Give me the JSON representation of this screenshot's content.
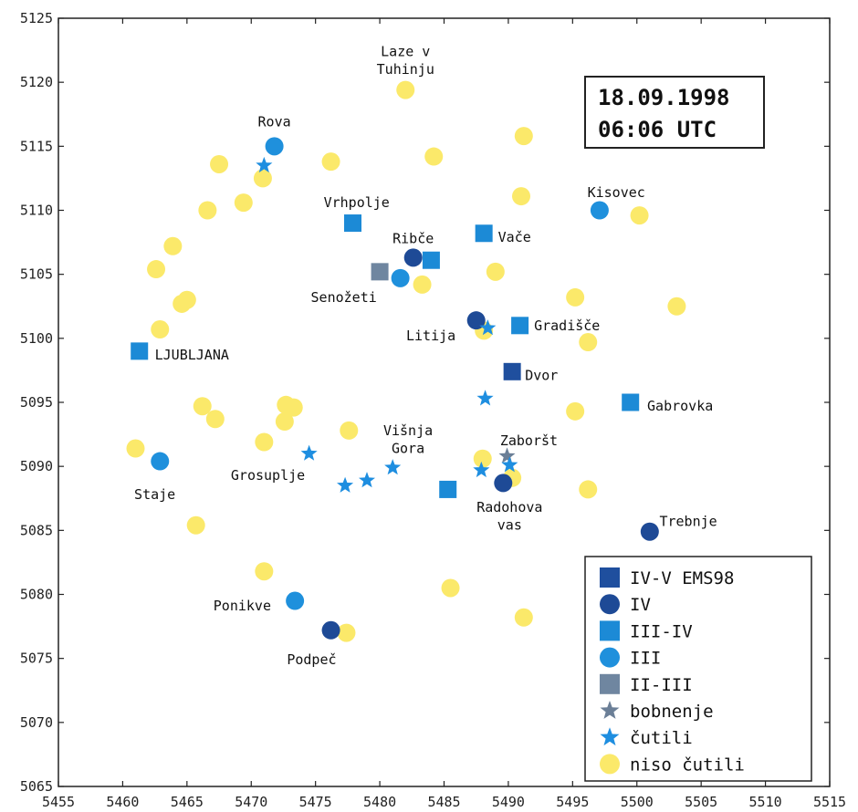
{
  "chart_data": {
    "type": "scatter",
    "xlim": [
      5455,
      5515
    ],
    "ylim": [
      5065,
      5125
    ],
    "x_ticks": [
      5455,
      5460,
      5465,
      5470,
      5475,
      5480,
      5485,
      5490,
      5495,
      5500,
      5505,
      5510,
      5515
    ],
    "y_ticks": [
      5065,
      5070,
      5075,
      5080,
      5085,
      5090,
      5095,
      5100,
      5105,
      5110,
      5115,
      5120,
      5125
    ],
    "date_box": {
      "line1": "18.09.1998",
      "line2": "06:06 UTC"
    },
    "legend_position": "bottom-right",
    "categories": [
      {
        "id": "iv_v",
        "label": "IV-V EMS98",
        "shape": "square",
        "color": "#1f4f9e"
      },
      {
        "id": "iv",
        "label": "IV",
        "shape": "circle",
        "color": "#1e4a96"
      },
      {
        "id": "iii_iv",
        "label": "III-IV",
        "shape": "square",
        "color": "#1c8ad6"
      },
      {
        "id": "iii",
        "label": "III",
        "shape": "circle",
        "color": "#1f90dc"
      },
      {
        "id": "ii_iii",
        "label": "II-III",
        "shape": "square",
        "color": "#6f86a0"
      },
      {
        "id": "bobnenje",
        "label": "bobnenje",
        "shape": "star",
        "color": "#6b7f97"
      },
      {
        "id": "cutili",
        "label": "čutili",
        "shape": "star",
        "color": "#1e8ee0"
      },
      {
        "id": "niso_cutili",
        "label": "niso čutili",
        "shape": "circle",
        "color": "#fbe96a"
      }
    ],
    "points": [
      {
        "cat": "niso_cutili",
        "x": 5482.0,
        "y": 5119.4
      },
      {
        "cat": "niso_cutili",
        "x": 5491.2,
        "y": 5115.8
      },
      {
        "cat": "niso_cutili",
        "x": 5467.5,
        "y": 5113.6
      },
      {
        "cat": "niso_cutili",
        "x": 5476.2,
        "y": 5113.8
      },
      {
        "cat": "niso_cutili",
        "x": 5484.2,
        "y": 5114.2
      },
      {
        "cat": "niso_cutili",
        "x": 5470.9,
        "y": 5112.5
      },
      {
        "cat": "niso_cutili",
        "x": 5469.4,
        "y": 5110.6
      },
      {
        "cat": "niso_cutili",
        "x": 5466.6,
        "y": 5110.0
      },
      {
        "cat": "niso_cutili",
        "x": 5491.0,
        "y": 5111.1
      },
      {
        "cat": "niso_cutili",
        "x": 5500.2,
        "y": 5109.6
      },
      {
        "cat": "niso_cutili",
        "x": 5463.9,
        "y": 5107.2
      },
      {
        "cat": "niso_cutili",
        "x": 5462.6,
        "y": 5105.4
      },
      {
        "cat": "niso_cutili",
        "x": 5465.0,
        "y": 5103.0
      },
      {
        "cat": "niso_cutili",
        "x": 5464.6,
        "y": 5102.7
      },
      {
        "cat": "niso_cutili",
        "x": 5462.9,
        "y": 5100.7
      },
      {
        "cat": "niso_cutili",
        "x": 5483.3,
        "y": 5104.2
      },
      {
        "cat": "niso_cutili",
        "x": 5489.0,
        "y": 5105.2
      },
      {
        "cat": "niso_cutili",
        "x": 5495.2,
        "y": 5103.2
      },
      {
        "cat": "niso_cutili",
        "x": 5503.1,
        "y": 5102.5
      },
      {
        "cat": "niso_cutili",
        "x": 5496.2,
        "y": 5099.7
      },
      {
        "cat": "niso_cutili",
        "x": 5488.1,
        "y": 5100.6
      },
      {
        "cat": "niso_cutili",
        "x": 5466.2,
        "y": 5094.7
      },
      {
        "cat": "niso_cutili",
        "x": 5467.2,
        "y": 5093.7
      },
      {
        "cat": "niso_cutili",
        "x": 5472.7,
        "y": 5094.8
      },
      {
        "cat": "niso_cutili",
        "x": 5473.3,
        "y": 5094.6
      },
      {
        "cat": "niso_cutili",
        "x": 5472.6,
        "y": 5093.5
      },
      {
        "cat": "niso_cutili",
        "x": 5477.6,
        "y": 5092.8
      },
      {
        "cat": "niso_cutili",
        "x": 5471.0,
        "y": 5091.9
      },
      {
        "cat": "niso_cutili",
        "x": 5461.0,
        "y": 5091.4
      },
      {
        "cat": "niso_cutili",
        "x": 5495.2,
        "y": 5094.3
      },
      {
        "cat": "niso_cutili",
        "x": 5488.0,
        "y": 5090.6
      },
      {
        "cat": "niso_cutili",
        "x": 5490.3,
        "y": 5089.1
      },
      {
        "cat": "niso_cutili",
        "x": 5496.2,
        "y": 5088.2
      },
      {
        "cat": "niso_cutili",
        "x": 5465.7,
        "y": 5085.4
      },
      {
        "cat": "niso_cutili",
        "x": 5471.0,
        "y": 5081.8
      },
      {
        "cat": "niso_cutili",
        "x": 5485.5,
        "y": 5080.5
      },
      {
        "cat": "niso_cutili",
        "x": 5491.2,
        "y": 5078.2
      },
      {
        "cat": "niso_cutili",
        "x": 5477.4,
        "y": 5077.0
      },
      {
        "cat": "iii",
        "x": 5471.8,
        "y": 5115.0
      },
      {
        "cat": "iii",
        "x": 5497.1,
        "y": 5110.0
      },
      {
        "cat": "iii",
        "x": 5481.6,
        "y": 5104.7
      },
      {
        "cat": "iii",
        "x": 5462.9,
        "y": 5090.4
      },
      {
        "cat": "iii",
        "x": 5473.4,
        "y": 5079.5
      },
      {
        "cat": "iv",
        "x": 5482.6,
        "y": 5106.3
      },
      {
        "cat": "iv",
        "x": 5487.5,
        "y": 5101.4
      },
      {
        "cat": "iv",
        "x": 5489.6,
        "y": 5088.7
      },
      {
        "cat": "iv",
        "x": 5501.0,
        "y": 5084.9
      },
      {
        "cat": "iv",
        "x": 5476.2,
        "y": 5077.2
      },
      {
        "cat": "iii_iv",
        "x": 5477.9,
        "y": 5109.0
      },
      {
        "cat": "iii_iv",
        "x": 5484.0,
        "y": 5106.1
      },
      {
        "cat": "iii_iv",
        "x": 5488.1,
        "y": 5108.2
      },
      {
        "cat": "iii_iv",
        "x": 5490.9,
        "y": 5101.0
      },
      {
        "cat": "iii_iv",
        "x": 5461.3,
        "y": 5099.0
      },
      {
        "cat": "iii_iv",
        "x": 5499.5,
        "y": 5095.0
      },
      {
        "cat": "iii_iv",
        "x": 5485.3,
        "y": 5088.2
      },
      {
        "cat": "iv_v",
        "x": 5490.3,
        "y": 5097.4
      },
      {
        "cat": "ii_iii",
        "x": 5480.0,
        "y": 5105.2
      },
      {
        "cat": "bobnenje",
        "x": 5489.9,
        "y": 5090.8
      },
      {
        "cat": "cutili",
        "x": 5471.0,
        "y": 5113.5
      },
      {
        "cat": "cutili",
        "x": 5488.4,
        "y": 5100.8
      },
      {
        "cat": "cutili",
        "x": 5488.2,
        "y": 5095.3
      },
      {
        "cat": "cutili",
        "x": 5474.5,
        "y": 5091.0
      },
      {
        "cat": "cutili",
        "x": 5481.0,
        "y": 5089.9
      },
      {
        "cat": "cutili",
        "x": 5479.0,
        "y": 5088.9
      },
      {
        "cat": "cutili",
        "x": 5477.3,
        "y": 5088.5
      },
      {
        "cat": "cutili",
        "x": 5487.9,
        "y": 5089.7
      },
      {
        "cat": "cutili",
        "x": 5490.1,
        "y": 5090.1
      }
    ],
    "labels": [
      {
        "text": "Laze v",
        "x": 5482.0,
        "y": 5122.4,
        "anchor": "middle"
      },
      {
        "text": "Tuhinju",
        "x": 5482.0,
        "y": 5121.0,
        "anchor": "middle"
      },
      {
        "text": "Rova",
        "x": 5471.8,
        "y": 5116.9,
        "anchor": "middle"
      },
      {
        "text": "Vrhpolje",
        "x": 5478.2,
        "y": 5110.6,
        "anchor": "middle"
      },
      {
        "text": "Ribče",
        "x": 5482.6,
        "y": 5107.8,
        "anchor": "middle"
      },
      {
        "text": "Vače",
        "x": 5489.2,
        "y": 5107.9,
        "anchor": "start"
      },
      {
        "text": "Kisovec",
        "x": 5498.4,
        "y": 5111.4,
        "anchor": "middle"
      },
      {
        "text": "Senožeti",
        "x": 5477.2,
        "y": 5103.2,
        "anchor": "middle"
      },
      {
        "text": "Litija",
        "x": 5485.9,
        "y": 5100.2,
        "anchor": "end"
      },
      {
        "text": "Gradišče",
        "x": 5492.0,
        "y": 5101.0,
        "anchor": "start"
      },
      {
        "text": "LJUBLJANA",
        "x": 5462.5,
        "y": 5098.7,
        "anchor": "start"
      },
      {
        "text": "Dvor",
        "x": 5491.3,
        "y": 5097.1,
        "anchor": "start"
      },
      {
        "text": "Gabrovka",
        "x": 5500.8,
        "y": 5094.7,
        "anchor": "start"
      },
      {
        "text": "Višnja",
        "x": 5482.2,
        "y": 5092.8,
        "anchor": "middle"
      },
      {
        "text": "Gora",
        "x": 5482.2,
        "y": 5091.4,
        "anchor": "middle"
      },
      {
        "text": "Zaboršt",
        "x": 5491.6,
        "y": 5092.0,
        "anchor": "middle"
      },
      {
        "text": "Grosuplje",
        "x": 5471.3,
        "y": 5089.3,
        "anchor": "middle"
      },
      {
        "text": "Staje",
        "x": 5462.5,
        "y": 5087.8,
        "anchor": "middle"
      },
      {
        "text": "Radohova",
        "x": 5490.1,
        "y": 5086.8,
        "anchor": "middle"
      },
      {
        "text": "vas",
        "x": 5490.1,
        "y": 5085.4,
        "anchor": "middle"
      },
      {
        "text": "Trebnje",
        "x": 5504.0,
        "y": 5085.7,
        "anchor": "middle"
      },
      {
        "text": "Ponikve",
        "x": 5469.3,
        "y": 5079.1,
        "anchor": "middle"
      },
      {
        "text": "Podpeč",
        "x": 5474.7,
        "y": 5074.9,
        "anchor": "middle"
      }
    ]
  }
}
